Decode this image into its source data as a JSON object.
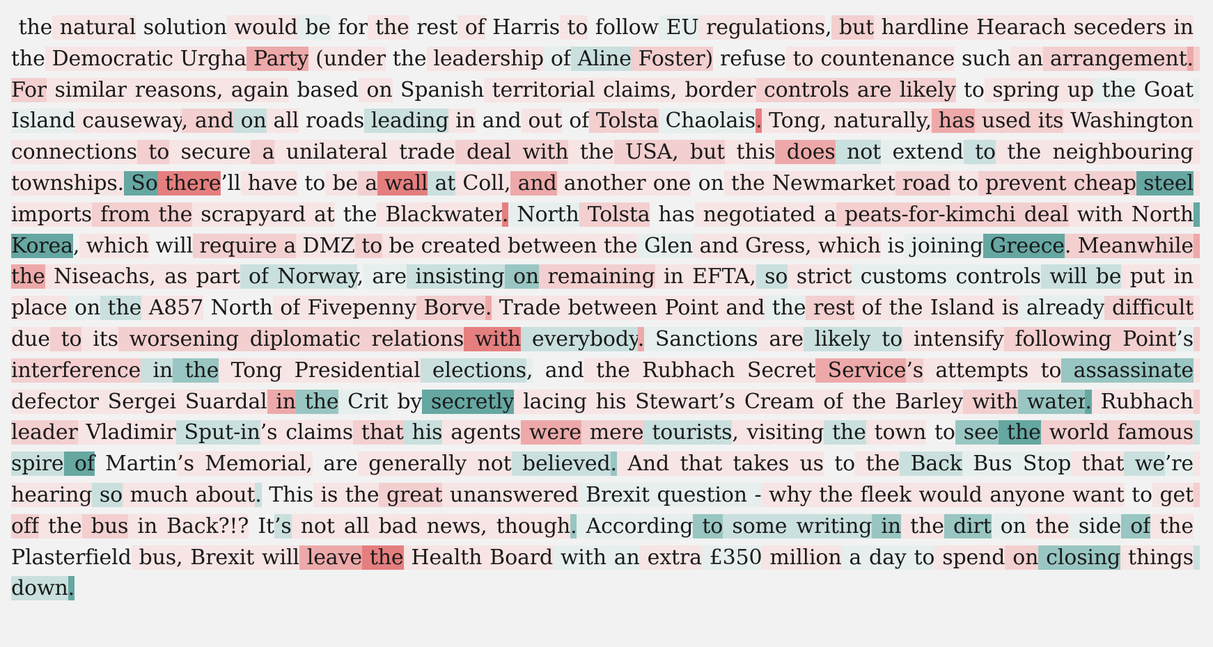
{
  "document": {
    "tokens": [
      [
        " the",
        ""
      ],
      [
        " natural",
        "r1"
      ],
      [
        " solution",
        ""
      ],
      [
        " would",
        "r1"
      ],
      [
        " be",
        "t1"
      ],
      [
        " for",
        ""
      ],
      [
        " the",
        "r1"
      ],
      [
        " rest",
        ""
      ],
      [
        " of",
        "r1"
      ],
      [
        " Harris",
        ""
      ],
      [
        " to",
        "r1"
      ],
      [
        " follow",
        ""
      ],
      [
        " EU",
        "t1"
      ],
      [
        " regulations",
        "r1"
      ],
      [
        ",",
        ""
      ],
      [
        " but",
        "r2"
      ],
      [
        " hardline",
        "r1"
      ],
      [
        " Hearach",
        "r1"
      ],
      [
        " seceders",
        "r1"
      ],
      [
        " in",
        "r1"
      ],
      [
        " the",
        ""
      ],
      [
        " Democratic",
        "r1"
      ],
      [
        " Urgha",
        "r1"
      ],
      [
        " Party",
        "r3"
      ],
      [
        " (under",
        "r1"
      ],
      [
        " the",
        ""
      ],
      [
        " leadership",
        "r1"
      ],
      [
        " of",
        "t1"
      ],
      [
        " Aline",
        "t2"
      ],
      [
        " Foster)",
        "r2"
      ],
      [
        " refuse",
        ""
      ],
      [
        " to",
        "r1"
      ],
      [
        " countenance",
        "r1"
      ],
      [
        " such",
        ""
      ],
      [
        " an",
        "r1"
      ],
      [
        " arrangement",
        "r2"
      ],
      [
        ".",
        "r3"
      ],
      [
        " For",
        "r2"
      ],
      [
        " similar",
        "r1"
      ],
      [
        " reasons,",
        "r1"
      ],
      [
        " again",
        "r1"
      ],
      [
        " based",
        ""
      ],
      [
        " on",
        "r1"
      ],
      [
        " Spanish",
        ""
      ],
      [
        " territorial",
        "r1"
      ],
      [
        " claims,",
        "r1"
      ],
      [
        " border",
        "r1"
      ],
      [
        " controls",
        "r2"
      ],
      [
        " are",
        "r2"
      ],
      [
        " likely",
        "r2"
      ],
      [
        " to",
        ""
      ],
      [
        " spring",
        "r1"
      ],
      [
        " up",
        "r1"
      ],
      [
        " the",
        "t1"
      ],
      [
        " Goat",
        ""
      ],
      [
        " Island",
        "t1"
      ],
      [
        " causeway",
        "r1"
      ],
      [
        ",",
        "r2"
      ],
      [
        " and",
        "r2"
      ],
      [
        " on",
        "t2"
      ],
      [
        " all",
        "r1"
      ],
      [
        " roads",
        ""
      ],
      [
        " leading",
        "t2"
      ],
      [
        " in",
        "r1"
      ],
      [
        " and",
        ""
      ],
      [
        " out",
        "r1"
      ],
      [
        " of",
        ""
      ],
      [
        " Tolsta",
        "r2"
      ],
      [
        " Chaolais",
        "t1"
      ],
      [
        ".",
        "r4"
      ],
      [
        " Tong,",
        "r1"
      ],
      [
        " naturally,",
        "r1"
      ],
      [
        " has",
        "r3"
      ],
      [
        " used",
        "r2"
      ],
      [
        " its",
        "r2"
      ],
      [
        " Washington",
        "r1"
      ],
      [
        " connections",
        "r1"
      ],
      [
        " to",
        "r2"
      ],
      [
        " secure",
        "r1"
      ],
      [
        " a",
        "r2"
      ],
      [
        " unilateral",
        "r1"
      ],
      [
        " trade",
        "r1"
      ],
      [
        " deal",
        "r2"
      ],
      [
        " with",
        "r2"
      ],
      [
        " the",
        "r1"
      ],
      [
        " USA,",
        "r2"
      ],
      [
        " but",
        "r2"
      ],
      [
        " this",
        "r1"
      ],
      [
        " does",
        "r3"
      ],
      [
        " not",
        "t2"
      ],
      [
        " extend",
        "t1"
      ],
      [
        " to",
        "t2"
      ],
      [
        " the",
        "r1"
      ],
      [
        " neighbouring",
        "r1"
      ],
      [
        " townships.",
        "r1"
      ],
      [
        " So",
        "t4"
      ],
      [
        " there",
        "r4"
      ],
      [
        "’ll",
        ""
      ],
      [
        " have",
        "r1"
      ],
      [
        " to",
        ""
      ],
      [
        " be",
        "r1"
      ],
      [
        " a",
        "r2"
      ],
      [
        " wall",
        "r4"
      ],
      [
        " at",
        "t2"
      ],
      [
        " Coll,",
        "r1"
      ],
      [
        " and",
        "r3"
      ],
      [
        " another",
        "r1"
      ],
      [
        " one",
        "r1"
      ],
      [
        " on",
        ""
      ],
      [
        " the",
        "r1"
      ],
      [
        " Newmarket",
        "r1"
      ],
      [
        " road",
        "r2"
      ],
      [
        " to",
        "r1"
      ],
      [
        " prevent",
        "r2"
      ],
      [
        " cheap",
        "r2"
      ],
      [
        " steel",
        "t4"
      ],
      [
        " imports",
        "r1"
      ],
      [
        " from",
        "r2"
      ],
      [
        " the",
        "r2"
      ],
      [
        " scrapyard",
        "r1"
      ],
      [
        " at",
        "r1"
      ],
      [
        " the",
        ""
      ],
      [
        " Blackwater",
        "r1"
      ],
      [
        ".",
        "r4"
      ],
      [
        " North",
        "t1"
      ],
      [
        " Tolsta",
        "r2"
      ],
      [
        " has",
        ""
      ],
      [
        " negotiated",
        "r1"
      ],
      [
        " a",
        "r1"
      ],
      [
        " peats-for-kimchi",
        "r2"
      ],
      [
        " deal",
        "r2"
      ],
      [
        " with",
        "r1"
      ],
      [
        " North",
        "r1"
      ],
      [
        " Korea",
        "t4"
      ],
      [
        ",",
        ""
      ],
      [
        " which",
        "r1"
      ],
      [
        " will",
        ""
      ],
      [
        " require",
        "r2"
      ],
      [
        " a",
        "r2"
      ],
      [
        " DMZ",
        "r1"
      ],
      [
        " to",
        "r2"
      ],
      [
        " be",
        "r1"
      ],
      [
        " created",
        "r1"
      ],
      [
        " between",
        "r1"
      ],
      [
        " the",
        "r1"
      ],
      [
        " Glen",
        "t1"
      ],
      [
        " and",
        "r1"
      ],
      [
        " Gress,",
        "r1"
      ],
      [
        " which",
        "r1"
      ],
      [
        " is",
        ""
      ],
      [
        " joining",
        "t1"
      ],
      [
        " Greece",
        "t4"
      ],
      [
        ".",
        "r2"
      ],
      [
        " Meanwhile",
        "r2"
      ],
      [
        " the",
        "r3"
      ],
      [
        " Niseachs,",
        "r1"
      ],
      [
        " as",
        "r1"
      ],
      [
        " part",
        "r1"
      ],
      [
        " of",
        "t2"
      ],
      [
        " Norway",
        "t2"
      ],
      [
        ",",
        ""
      ],
      [
        " are",
        "t1"
      ],
      [
        " insisting",
        "t2"
      ],
      [
        " on",
        "t3"
      ],
      [
        " remaining",
        "r2"
      ],
      [
        " in",
        "r1"
      ],
      [
        " EFTA,",
        "r1"
      ],
      [
        " so",
        "t2"
      ],
      [
        " strict",
        "r1"
      ],
      [
        " customs",
        "t1"
      ],
      [
        " controls",
        "t1"
      ],
      [
        " will",
        "t2"
      ],
      [
        " be",
        "t2"
      ],
      [
        " put",
        "r1"
      ],
      [
        " in",
        "r1"
      ],
      [
        " place",
        "r1"
      ],
      [
        " on",
        "t1"
      ],
      [
        " the",
        "t2"
      ],
      [
        " A857",
        "r1"
      ],
      [
        " North",
        ""
      ],
      [
        " of",
        "r1"
      ],
      [
        " Fivepenny",
        "r1"
      ],
      [
        " Borve",
        "r2"
      ],
      [
        ".",
        "r3"
      ],
      [
        " Trade",
        "r1"
      ],
      [
        " between",
        "r1"
      ],
      [
        " Point",
        "r1"
      ],
      [
        " and",
        "r1"
      ],
      [
        " the",
        "t1"
      ],
      [
        " rest",
        "r2"
      ],
      [
        " of",
        "r1"
      ],
      [
        " the",
        "r1"
      ],
      [
        " Island",
        "r1"
      ],
      [
        " is",
        "r1"
      ],
      [
        " already",
        "t1"
      ],
      [
        " difficult",
        "r2"
      ],
      [
        " due",
        "r1"
      ],
      [
        " to",
        "r2"
      ],
      [
        " its",
        "r1"
      ],
      [
        " worsening",
        "r2"
      ],
      [
        " diplomatic",
        "r2"
      ],
      [
        " relations",
        "r2"
      ],
      [
        " with",
        "r4"
      ],
      [
        " everybody",
        "t2"
      ],
      [
        ".",
        "r3"
      ],
      [
        " Sanctions",
        "t1"
      ],
      [
        " are",
        "r1"
      ],
      [
        " likely",
        "t2"
      ],
      [
        " to",
        "t2"
      ],
      [
        " intensify",
        "r1"
      ],
      [
        " following",
        "r2"
      ],
      [
        " Point",
        "r2"
      ],
      [
        "’s",
        "t1"
      ],
      [
        " interference",
        "r2"
      ],
      [
        " in",
        "t2"
      ],
      [
        " the",
        "t3"
      ],
      [
        " Tong",
        "r1"
      ],
      [
        " Presidential",
        "r1"
      ],
      [
        " elections",
        "t2"
      ],
      [
        ",",
        "t1"
      ],
      [
        " and",
        ""
      ],
      [
        " the",
        "r1"
      ],
      [
        " Rubhach",
        "r1"
      ],
      [
        " Secret",
        "r1"
      ],
      [
        " Service",
        "r3"
      ],
      [
        "’s",
        "r2"
      ],
      [
        " attempts",
        "r1"
      ],
      [
        " to",
        "r1"
      ],
      [
        " assassinate",
        "t3"
      ],
      [
        " defector",
        "r1"
      ],
      [
        " Sergei",
        "r1"
      ],
      [
        " Suardal",
        "r1"
      ],
      [
        " in",
        "r3"
      ],
      [
        " the",
        "t3"
      ],
      [
        " Crit",
        "t1"
      ],
      [
        " by",
        ""
      ],
      [
        " secretly",
        "t4"
      ],
      [
        " lacing",
        "r1"
      ],
      [
        " his",
        "r1"
      ],
      [
        " Stewart",
        "r1"
      ],
      [
        "’s",
        "r1"
      ],
      [
        " Cream",
        "r1"
      ],
      [
        " of",
        "r1"
      ],
      [
        " the",
        "r1"
      ],
      [
        " Barley",
        "r1"
      ],
      [
        " with",
        "r2"
      ],
      [
        " water",
        "t3"
      ],
      [
        ".",
        "t4"
      ],
      [
        " Rubhach",
        "r1"
      ],
      [
        " leader",
        "r2"
      ],
      [
        " Vladimir",
        "r1"
      ],
      [
        " Sput-in",
        "t2"
      ],
      [
        "’s",
        "r1"
      ],
      [
        " claims",
        "r1"
      ],
      [
        " that",
        "r2"
      ],
      [
        " his",
        "t2"
      ],
      [
        " agents",
        "r1"
      ],
      [
        " were",
        "r3"
      ],
      [
        " mere",
        "r2"
      ],
      [
        " tourists",
        "t2"
      ],
      [
        ",",
        "r1"
      ],
      [
        " visiting",
        "r1"
      ],
      [
        " the",
        "t2"
      ],
      [
        " town",
        "r1"
      ],
      [
        " to",
        ""
      ],
      [
        " see",
        "t3"
      ],
      [
        " the",
        "t4"
      ],
      [
        " world",
        "r2"
      ],
      [
        " famous",
        "r2"
      ],
      [
        " spire",
        "t2"
      ],
      [
        " of",
        "t4"
      ],
      [
        " Martin",
        ""
      ],
      [
        "’s",
        "r1"
      ],
      [
        " Memorial,",
        "r1"
      ],
      [
        " are",
        ""
      ],
      [
        " generally",
        "r1"
      ],
      [
        " not",
        "r1"
      ],
      [
        " believed",
        "t2"
      ],
      [
        ".",
        "t3"
      ],
      [
        " And",
        "r1"
      ],
      [
        " that",
        "r1"
      ],
      [
        " takes",
        "r1"
      ],
      [
        " us",
        "r1"
      ],
      [
        " to",
        ""
      ],
      [
        " the",
        "r1"
      ],
      [
        " Back",
        "t2"
      ],
      [
        " Bus",
        "t1"
      ],
      [
        " Stop",
        "t1"
      ],
      [
        " that",
        "r1"
      ],
      [
        " we",
        "t2"
      ],
      [
        "’re",
        "t1"
      ],
      [
        " hearing",
        "r1"
      ],
      [
        " so",
        "t2"
      ],
      [
        " much",
        "r1"
      ],
      [
        " about",
        "r1"
      ],
      [
        ".",
        "t2"
      ],
      [
        " This",
        ""
      ],
      [
        " is",
        "r1"
      ],
      [
        " the",
        "r1"
      ],
      [
        " great",
        "r2"
      ],
      [
        " unanswered",
        "r1"
      ],
      [
        " Brexit",
        "t1"
      ],
      [
        " question",
        "t1"
      ],
      [
        " -",
        "t1"
      ],
      [
        " why",
        "r1"
      ],
      [
        " the",
        "r1"
      ],
      [
        " fleek",
        "r1"
      ],
      [
        " would",
        "r1"
      ],
      [
        " anyone",
        "r1"
      ],
      [
        " want",
        "r1"
      ],
      [
        " to",
        ""
      ],
      [
        " get",
        "r1"
      ],
      [
        " off",
        "r2"
      ],
      [
        " the",
        "r1"
      ],
      [
        " bus",
        "r2"
      ],
      [
        " in",
        "r1"
      ],
      [
        " Back?!?",
        "r1"
      ],
      [
        " It",
        ""
      ],
      [
        "’s",
        "t2"
      ],
      [
        " not",
        "r1"
      ],
      [
        " all",
        "r1"
      ],
      [
        " bad",
        "r1"
      ],
      [
        " news,",
        "r1"
      ],
      [
        " though",
        "r1"
      ],
      [
        ".",
        "t3"
      ],
      [
        " According",
        "t1"
      ],
      [
        " to",
        "t3"
      ],
      [
        " some",
        "t2"
      ],
      [
        " writing",
        "t2"
      ],
      [
        " in",
        "t3"
      ],
      [
        " the",
        "r1"
      ],
      [
        " dirt",
        "t3"
      ],
      [
        " on",
        "t1"
      ],
      [
        " the",
        "r1"
      ],
      [
        " side",
        "t1"
      ],
      [
        " of",
        "t3"
      ],
      [
        " the",
        "r1"
      ],
      [
        " Plasterfield",
        ""
      ],
      [
        " bus,",
        "r1"
      ],
      [
        " Brexit",
        "r1"
      ],
      [
        " will",
        "r1"
      ],
      [
        " leave",
        "r3"
      ],
      [
        " the",
        "r4"
      ],
      [
        " Health",
        "r1"
      ],
      [
        " Board",
        "r1"
      ],
      [
        " with",
        "t1"
      ],
      [
        " an",
        "t1"
      ],
      [
        " extra",
        "r1"
      ],
      [
        " £350",
        "t1"
      ],
      [
        " million",
        "r1"
      ],
      [
        " a",
        "t1"
      ],
      [
        " day",
        "t1"
      ],
      [
        " to",
        "t1"
      ],
      [
        " spend",
        "r1"
      ],
      [
        " on",
        "r2"
      ],
      [
        " closing",
        "t3"
      ],
      [
        " things",
        "r1"
      ],
      [
        " down",
        "t2"
      ],
      [
        ".",
        "t4"
      ]
    ]
  }
}
